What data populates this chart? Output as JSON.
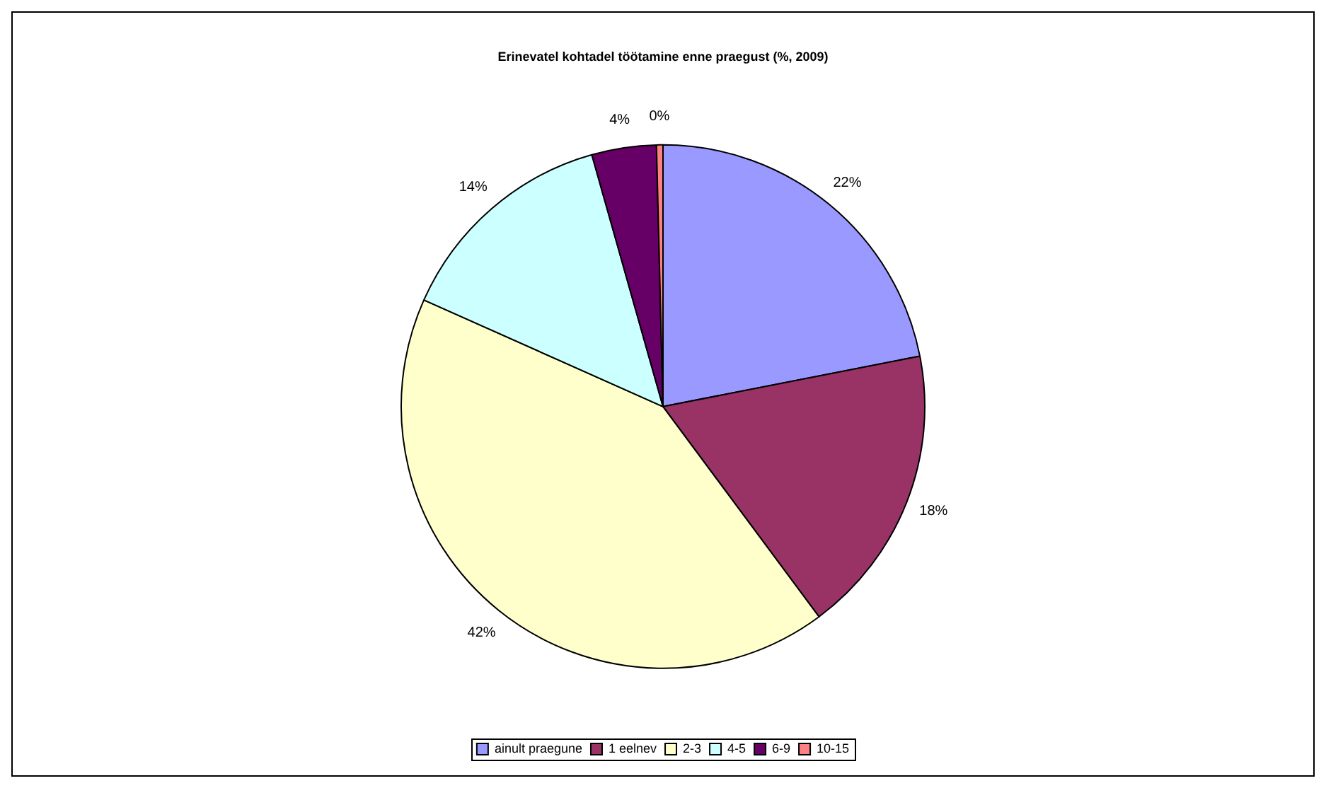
{
  "chart_data": {
    "type": "pie",
    "title": "Erinevatel kohtadel töötamine enne praegust (%, 2009)",
    "categories": [
      "ainult praegune",
      "1 eelnev",
      "2-3",
      "4-5",
      "6-9",
      "10-15"
    ],
    "values": [
      22,
      18,
      42,
      14,
      4,
      0.4
    ],
    "value_labels": [
      "22%",
      "18%",
      "42%",
      "14%",
      "4%",
      "0%"
    ],
    "colors": [
      "#9999ff",
      "#993366",
      "#ffffcc",
      "#ccffff",
      "#660066",
      "#ff8080"
    ],
    "legend": "bottom"
  }
}
